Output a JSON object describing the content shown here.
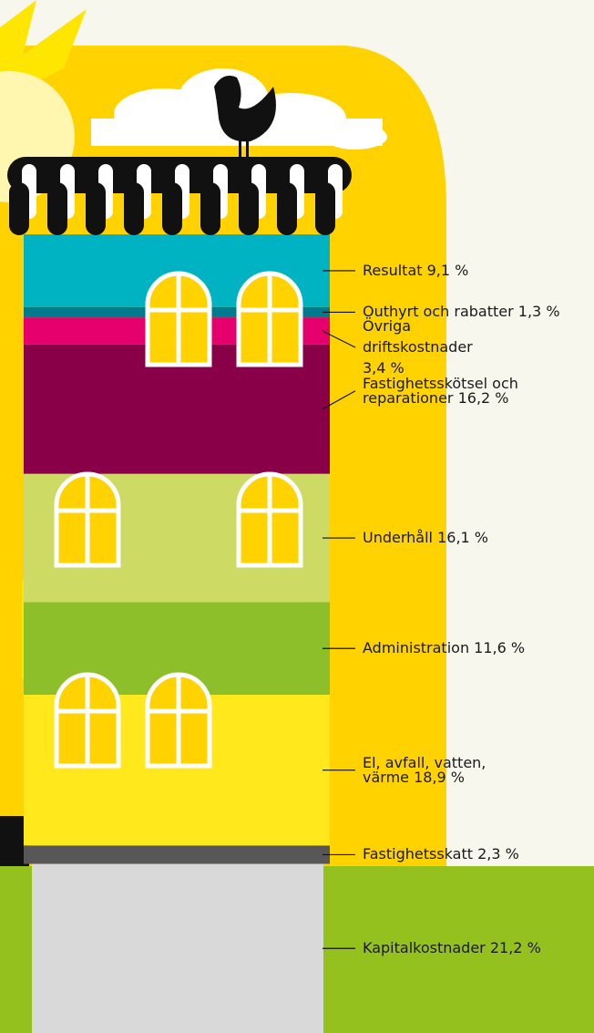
{
  "chart_data": {
    "type": "stacked-building",
    "categories": [
      "Resultat",
      "Outhyrt och rabatter",
      "Övriga driftskostnader",
      "Fastighetsskötsel och reparationer",
      "Underhåll",
      "Administration",
      "El, avfall, vatten, värme",
      "Fastighetsskatt",
      "Kapitalkostnader"
    ],
    "values": [
      9.1,
      1.3,
      3.4,
      16.2,
      16.1,
      11.6,
      18.9,
      2.3,
      21.2
    ],
    "value_labels": [
      "9,1 %",
      "1,3 %",
      "3,4 %",
      "16,2 %",
      "16,1 %",
      "11,6 %",
      "18,9 %",
      "2,3 %",
      "21,2 %"
    ],
    "colors": [
      "#00b3c2",
      "#007a8e",
      "#e5006d",
      "#8a0048",
      "#cddb65",
      "#8dbf2a",
      "#ffe81c",
      "#575757",
      "#d9d9d9"
    ]
  }
}
